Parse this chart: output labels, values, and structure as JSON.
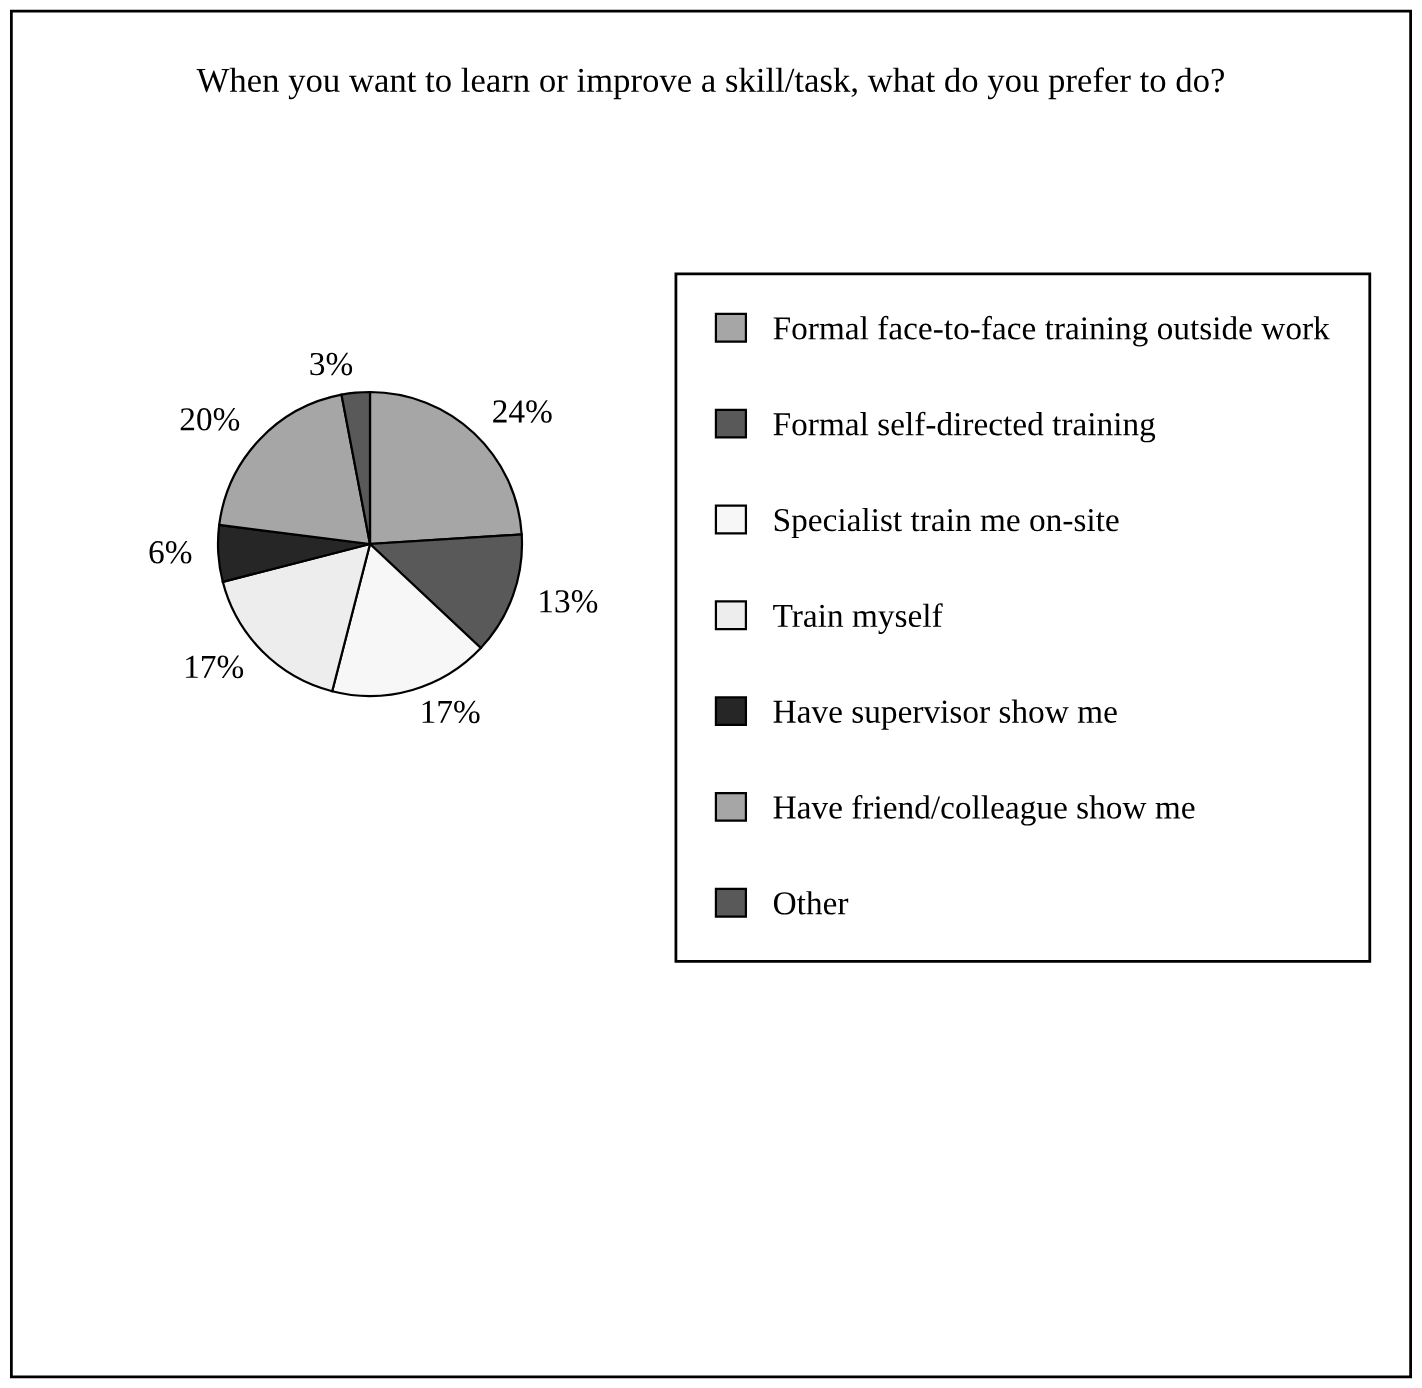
{
  "chart_data": {
    "type": "pie",
    "title": "When you want to learn or improve a skill/task, what do you prefer to do?",
    "categories": [
      "Formal face-to-face training outside work",
      "Formal self-directed training",
      "Specialist train me on-site",
      "Train myself",
      "Have supervisor show me",
      "Have friend/colleague show me",
      "Other"
    ],
    "values": [
      24,
      13,
      17,
      17,
      6,
      20,
      3
    ],
    "colors": [
      "#a6a6a6",
      "#595959",
      "#f7f7f7",
      "#ededed",
      "#262626",
      "#a6a6a6",
      "#595959"
    ],
    "value_labels": [
      "24%",
      "13%",
      "17%",
      "17%",
      "6%",
      "20%",
      "3%"
    ],
    "legend": "right"
  }
}
